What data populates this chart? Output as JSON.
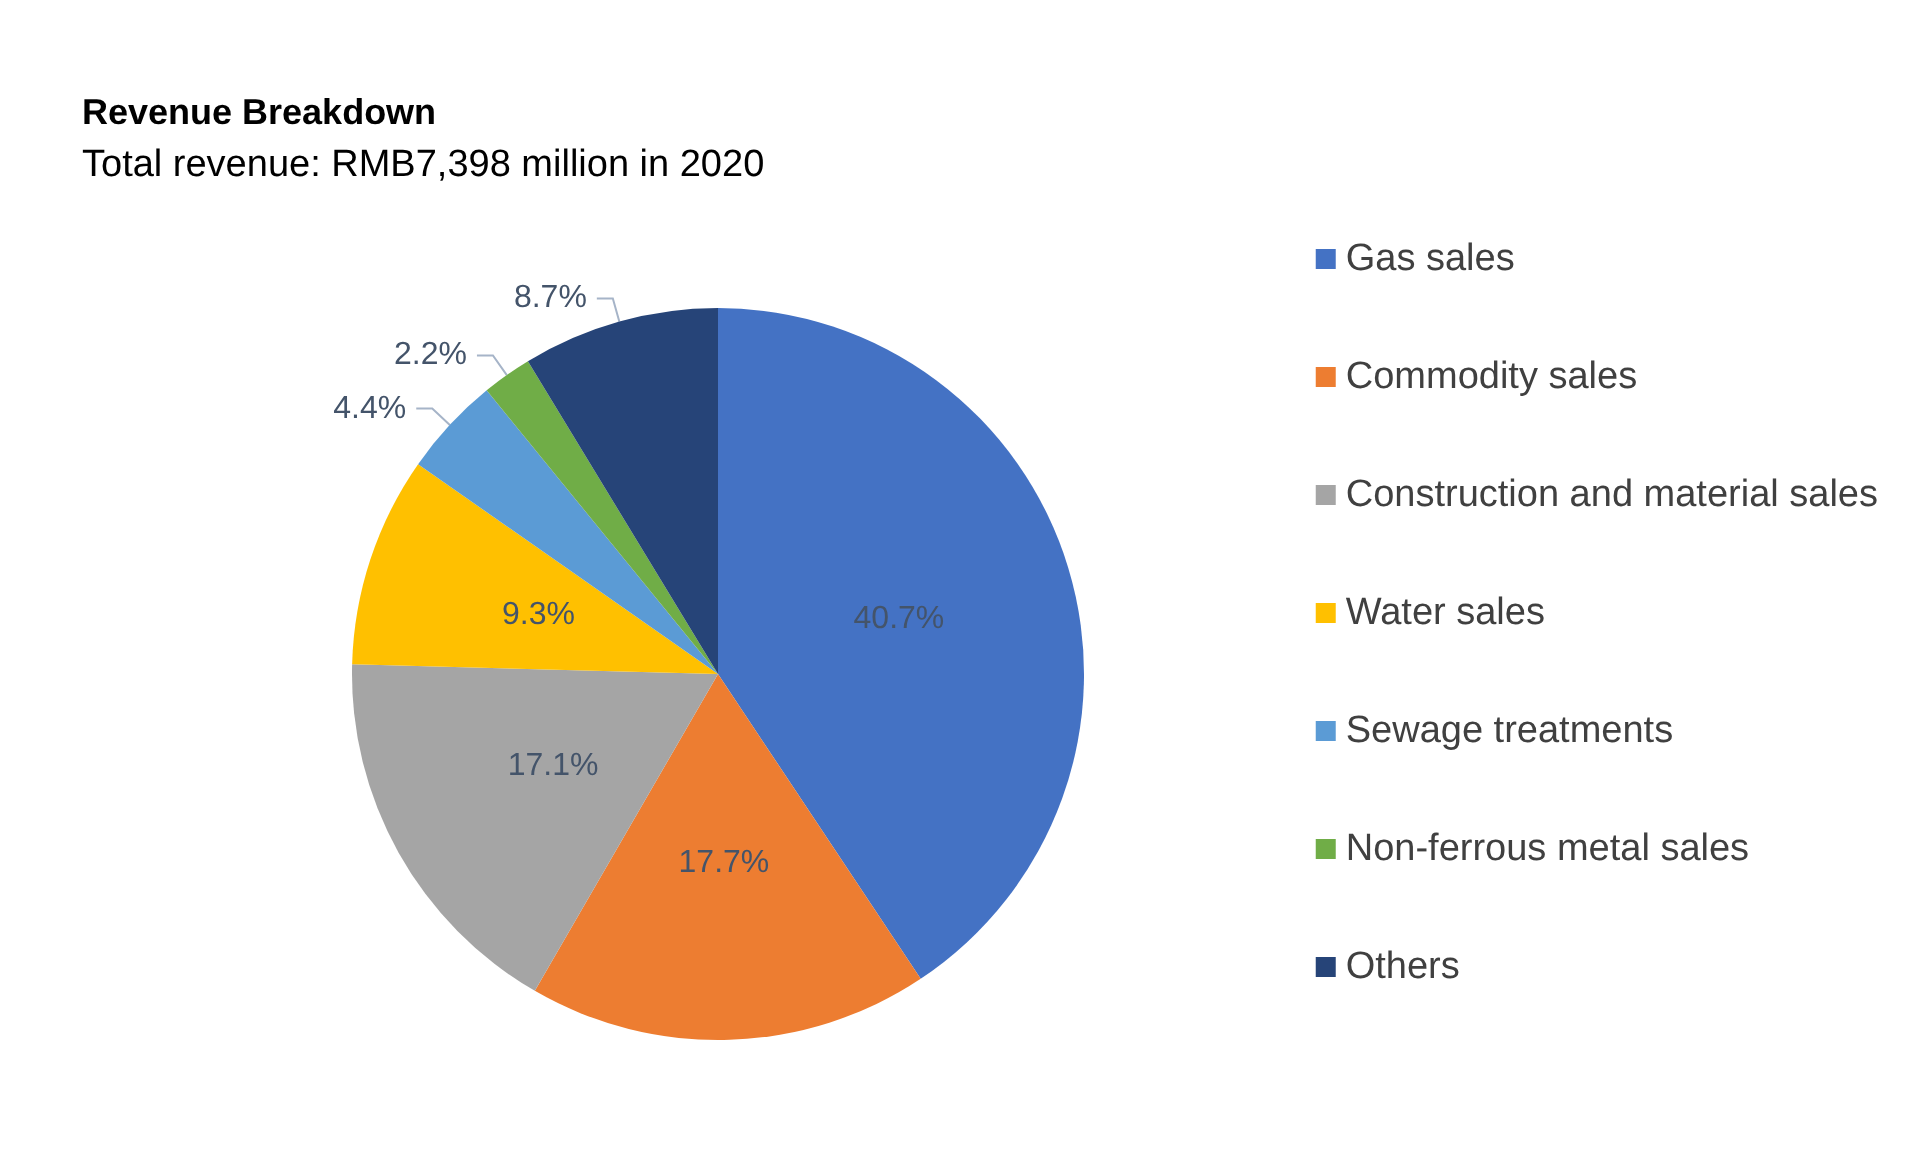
{
  "chart_data": {
    "type": "pie",
    "title": "Revenue Breakdown",
    "subtitle": "Total revenue: RMB7,398 million in 2020",
    "categories": [
      "Gas sales",
      "Commodity sales",
      "Construction and material sales",
      "Water sales",
      "Sewage treatments",
      "Non-ferrous metal sales",
      "Others"
    ],
    "values": [
      40.7,
      17.7,
      17.1,
      9.3,
      4.4,
      2.2,
      8.7
    ],
    "value_labels": [
      "40.7%",
      "17.7%",
      "17.1%",
      "9.3%",
      "4.4%",
      "2.2%",
      "8.7%"
    ],
    "colors": [
      "#4472c4",
      "#ed7d31",
      "#a5a5a5",
      "#ffc000",
      "#5b9bd5",
      "#70ad47",
      "#264478"
    ],
    "legend": "right"
  }
}
